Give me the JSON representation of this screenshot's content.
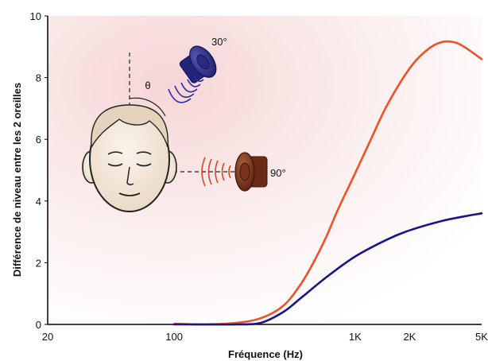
{
  "chart_data": {
    "type": "line",
    "xlabel": "Fréquence (Hz)",
    "ylabel": "Différence de niveau entre les 2 oreilles",
    "x_scale": "log",
    "xlim": [
      20,
      5000
    ],
    "ylim": [
      0,
      10
    ],
    "x_ticks": [
      {
        "value": 20,
        "label": "20"
      },
      {
        "value": 100,
        "label": "100"
      },
      {
        "value": 1000,
        "label": "1K"
      },
      {
        "value": 2000,
        "label": "2K"
      },
      {
        "value": 5000,
        "label": "5K"
      }
    ],
    "y_ticks": [
      {
        "value": 0,
        "label": "0"
      },
      {
        "value": 2,
        "label": "2"
      },
      {
        "value": 4,
        "label": "4"
      },
      {
        "value": 6,
        "label": "6"
      },
      {
        "value": 8,
        "label": "8"
      },
      {
        "value": 10,
        "label": "10"
      }
    ],
    "series": [
      {
        "color": "#f05024",
        "points": [
          [
            100,
            0.02
          ],
          [
            150,
            0
          ],
          [
            220,
            0.05
          ],
          [
            300,
            0.2
          ],
          [
            400,
            0.6
          ],
          [
            500,
            1.3
          ],
          [
            600,
            2.1
          ],
          [
            700,
            2.9
          ],
          [
            800,
            3.7
          ],
          [
            1000,
            4.9
          ],
          [
            1200,
            5.9
          ],
          [
            1500,
            7.1
          ],
          [
            2000,
            8.3
          ],
          [
            2500,
            8.9
          ],
          [
            3000,
            9.15
          ],
          [
            3500,
            9.15
          ],
          [
            4000,
            9.0
          ],
          [
            5000,
            8.6
          ]
        ]
      },
      {
        "color": "#17158a",
        "points": [
          [
            100,
            0
          ],
          [
            150,
            0
          ],
          [
            220,
            0
          ],
          [
            300,
            0.05
          ],
          [
            400,
            0.4
          ],
          [
            500,
            0.85
          ],
          [
            700,
            1.55
          ],
          [
            1000,
            2.2
          ],
          [
            1500,
            2.75
          ],
          [
            2000,
            3.05
          ],
          [
            3000,
            3.35
          ],
          [
            4000,
            3.5
          ],
          [
            5000,
            3.6
          ]
        ]
      }
    ],
    "grid": false,
    "legend": "none",
    "annotations": [
      {
        "text": "30°"
      },
      {
        "text": "90°"
      },
      {
        "text": "θ"
      }
    ]
  }
}
